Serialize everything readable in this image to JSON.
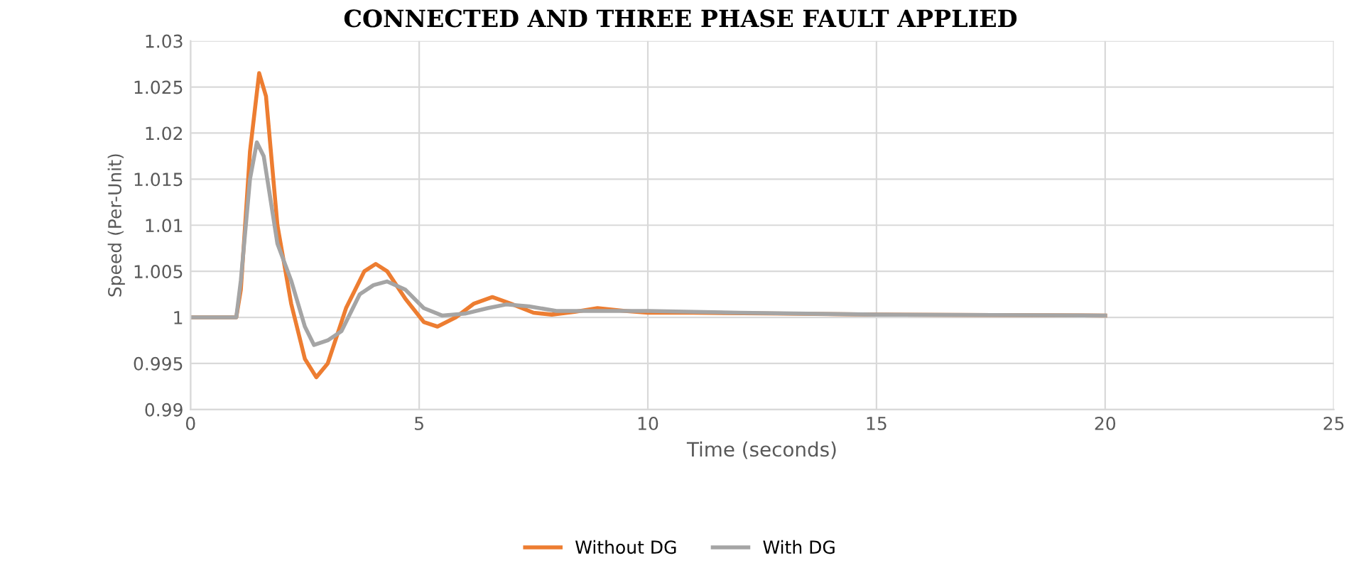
{
  "chart_data": {
    "type": "line",
    "title": "CONNECTED AND THREE PHASE FAULT APPLIED",
    "xlabel": "Time (seconds)",
    "ylabel": "Speed (Per-Unit)",
    "xlim": [
      0,
      25
    ],
    "xticks": [
      0,
      5,
      10,
      15,
      20,
      25
    ],
    "ylim": [
      0.99,
      1.03
    ],
    "yticks": [
      0.99,
      0.995,
      1,
      1.005,
      1.01,
      1.015,
      1.02,
      1.025,
      1.03
    ],
    "grid": true,
    "legend": "bottom",
    "marker": "none",
    "line_style": "solid",
    "series": [
      {
        "name": "Without DG",
        "color": "#ed7d31",
        "x": [
          0,
          1,
          1.1,
          1.3,
          1.5,
          1.65,
          1.9,
          2.2,
          2.5,
          2.75,
          3.0,
          3.4,
          3.8,
          4.05,
          4.3,
          4.7,
          5.1,
          5.4,
          5.8,
          6.2,
          6.6,
          7.0,
          7.5,
          7.9,
          8.4,
          8.9,
          9.5,
          10,
          11,
          13,
          15,
          20
        ],
        "values": [
          1,
          1,
          1.003,
          1.018,
          1.0265,
          1.024,
          1.01,
          1.0015,
          0.9955,
          0.9935,
          0.995,
          1.001,
          1.005,
          1.0058,
          1.005,
          1.002,
          0.9995,
          0.999,
          1.0,
          1.0015,
          1.0022,
          1.0015,
          1.0005,
          1.0003,
          1.0006,
          1.001,
          1.0007,
          1.0005,
          1.0005,
          1.0004,
          1.0003,
          1.0002
        ]
      },
      {
        "name": "With DG",
        "color": "#a5a5a5",
        "x": [
          0,
          1,
          1.1,
          1.3,
          1.45,
          1.6,
          1.9,
          2.2,
          2.5,
          2.7,
          3.0,
          3.3,
          3.7,
          4.0,
          4.3,
          4.7,
          5.1,
          5.5,
          6.0,
          6.5,
          6.9,
          7.4,
          8.0,
          9,
          10,
          12,
          15,
          20
        ],
        "values": [
          1,
          1,
          1.004,
          1.015,
          1.019,
          1.0175,
          1.008,
          1.004,
          0.999,
          0.997,
          0.9975,
          0.9985,
          1.0025,
          1.0035,
          1.0039,
          1.003,
          1.001,
          1.0002,
          1.0004,
          1.001,
          1.0014,
          1.0012,
          1.0007,
          1.0007,
          1.0007,
          1.0005,
          1.0003,
          1.0002
        ]
      }
    ]
  }
}
